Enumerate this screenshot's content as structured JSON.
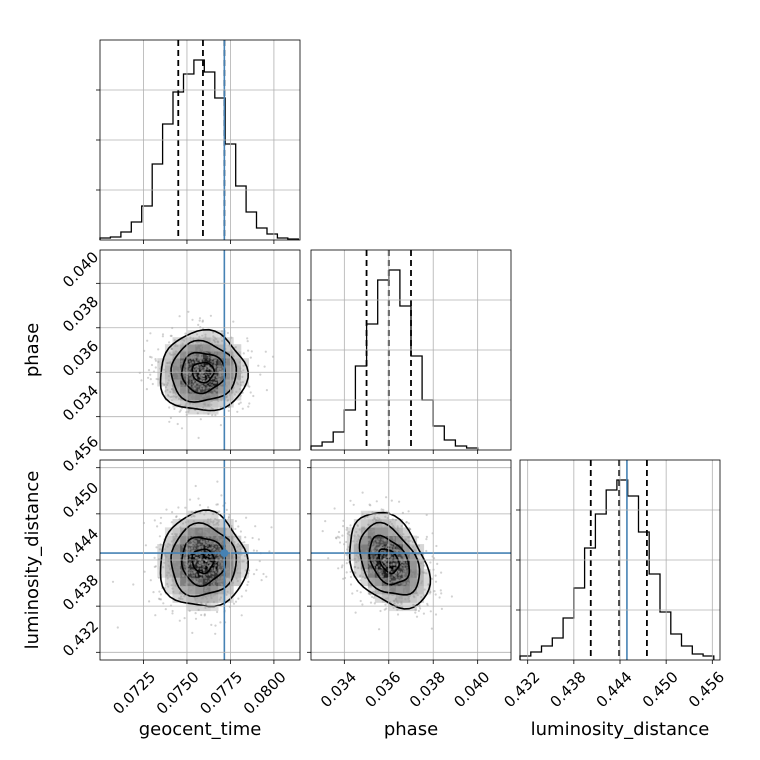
{
  "chart_data": {
    "type": "corner",
    "parameters": [
      {
        "name": "geocent_time",
        "label": "geocent_time",
        "range": [
          0.07,
          0.0815
        ],
        "ticks": [
          0.0725,
          0.075,
          0.0775,
          0.08
        ],
        "tick_labels": [
          "0.0725",
          "0.0750",
          "0.0775",
          "0.0800"
        ],
        "truth": 0.07715,
        "median": 0.07592,
        "quantiles": [
          0.0745,
          0.07592,
          0.07715
        ],
        "hist_bins": [
          0.07,
          0.0706,
          0.0712,
          0.0718,
          0.0724,
          0.073,
          0.0736,
          0.0742,
          0.0748,
          0.0754,
          0.076,
          0.0766,
          0.0772,
          0.0778,
          0.0784,
          0.079,
          0.0796,
          0.0802,
          0.0808,
          0.0814
        ],
        "hist_heights": [
          0.01,
          0.015,
          0.04,
          0.09,
          0.17,
          0.38,
          0.58,
          0.74,
          0.83,
          0.9,
          0.84,
          0.71,
          0.48,
          0.27,
          0.14,
          0.06,
          0.03,
          0.01,
          0.005
        ]
      },
      {
        "name": "phase",
        "label": "phase",
        "range": [
          0.0325,
          0.0415
        ],
        "ticks": [
          0.034,
          0.036,
          0.038,
          0.04
        ],
        "tick_labels": [
          "0.034",
          "0.036",
          "0.038",
          "0.040"
        ],
        "truth": null,
        "median": 0.036,
        "quantiles": [
          0.035,
          0.036,
          0.037
        ],
        "hist_bins": [
          0.0325,
          0.033,
          0.0335,
          0.034,
          0.0345,
          0.035,
          0.0355,
          0.036,
          0.0365,
          0.037,
          0.0375,
          0.038,
          0.0385,
          0.039,
          0.0395,
          0.04
        ],
        "hist_heights": [
          0.02,
          0.04,
          0.09,
          0.2,
          0.42,
          0.63,
          0.85,
          0.9,
          0.72,
          0.47,
          0.25,
          0.12,
          0.05,
          0.02,
          0.01
        ]
      },
      {
        "name": "luminosity_distance",
        "label": "luminosity_distance",
        "range": [
          0.431,
          0.457
        ],
        "ticks": [
          0.432,
          0.438,
          0.444,
          0.45,
          0.456
        ],
        "tick_labels": [
          "0.432",
          "0.438",
          "0.444",
          "0.450",
          "0.456"
        ],
        "truth": 0.4449,
        "median": 0.4439,
        "quantiles": [
          0.4402,
          0.4439,
          0.4475
        ],
        "hist_bins": [
          0.431,
          0.4324,
          0.4338,
          0.4352,
          0.4366,
          0.438,
          0.4394,
          0.4408,
          0.4422,
          0.4436,
          0.445,
          0.4464,
          0.4478,
          0.4492,
          0.4506,
          0.452,
          0.4534,
          0.4548,
          0.4562
        ],
        "hist_heights": [
          0.02,
          0.04,
          0.07,
          0.11,
          0.21,
          0.36,
          0.56,
          0.73,
          0.85,
          0.9,
          0.82,
          0.64,
          0.43,
          0.24,
          0.13,
          0.07,
          0.03,
          0.02
        ]
      }
    ],
    "pairs": [
      {
        "x": "geocent_time",
        "y": "phase",
        "mean": [
          0.07592,
          0.036
        ],
        "std": [
          0.00125,
          0.0009
        ],
        "corr": 0.0
      },
      {
        "x": "geocent_time",
        "y": "luminosity_distance",
        "mean": [
          0.07592,
          0.4439
        ],
        "std": [
          0.00125,
          0.0031
        ],
        "corr": 0.0
      },
      {
        "x": "phase",
        "y": "luminosity_distance",
        "mean": [
          0.036,
          0.4439
        ],
        "std": [
          0.0009,
          0.0031
        ],
        "corr": -0.35
      }
    ],
    "contour_levels_sigma": [
      0.5,
      1.0,
      1.5,
      2.0
    ],
    "truth_color": "#4682b4",
    "grid": true
  }
}
